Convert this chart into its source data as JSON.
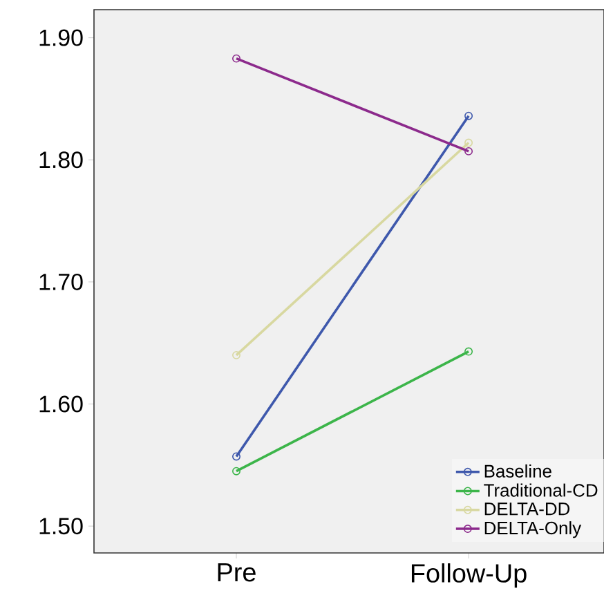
{
  "chart_data": {
    "type": "line",
    "categories": [
      "Pre",
      "Follow-Up"
    ],
    "series": [
      {
        "name": "Baseline",
        "color": "#3e58ac",
        "values": [
          1.557,
          1.836
        ]
      },
      {
        "name": "Traditional-CD",
        "color": "#3cb54a",
        "values": [
          1.545,
          1.643
        ]
      },
      {
        "name": "DELTA-DD",
        "color": "#d8d8a0",
        "values": [
          1.64,
          1.814
        ]
      },
      {
        "name": "DELTA-Only",
        "color": "#8c2a8c",
        "values": [
          1.883,
          1.807
        ]
      }
    ],
    "ylim": [
      1.478,
      1.923
    ],
    "yticks": [
      {
        "value": 1.5,
        "label": "1.50"
      },
      {
        "value": 1.6,
        "label": "1.60"
      },
      {
        "value": 1.7,
        "label": "1.70"
      },
      {
        "value": 1.8,
        "label": "1.80"
      },
      {
        "value": 1.9,
        "label": "1.90"
      }
    ],
    "legend": "bottom right",
    "marker": "circle",
    "line_style": "solid",
    "grid": false
  }
}
